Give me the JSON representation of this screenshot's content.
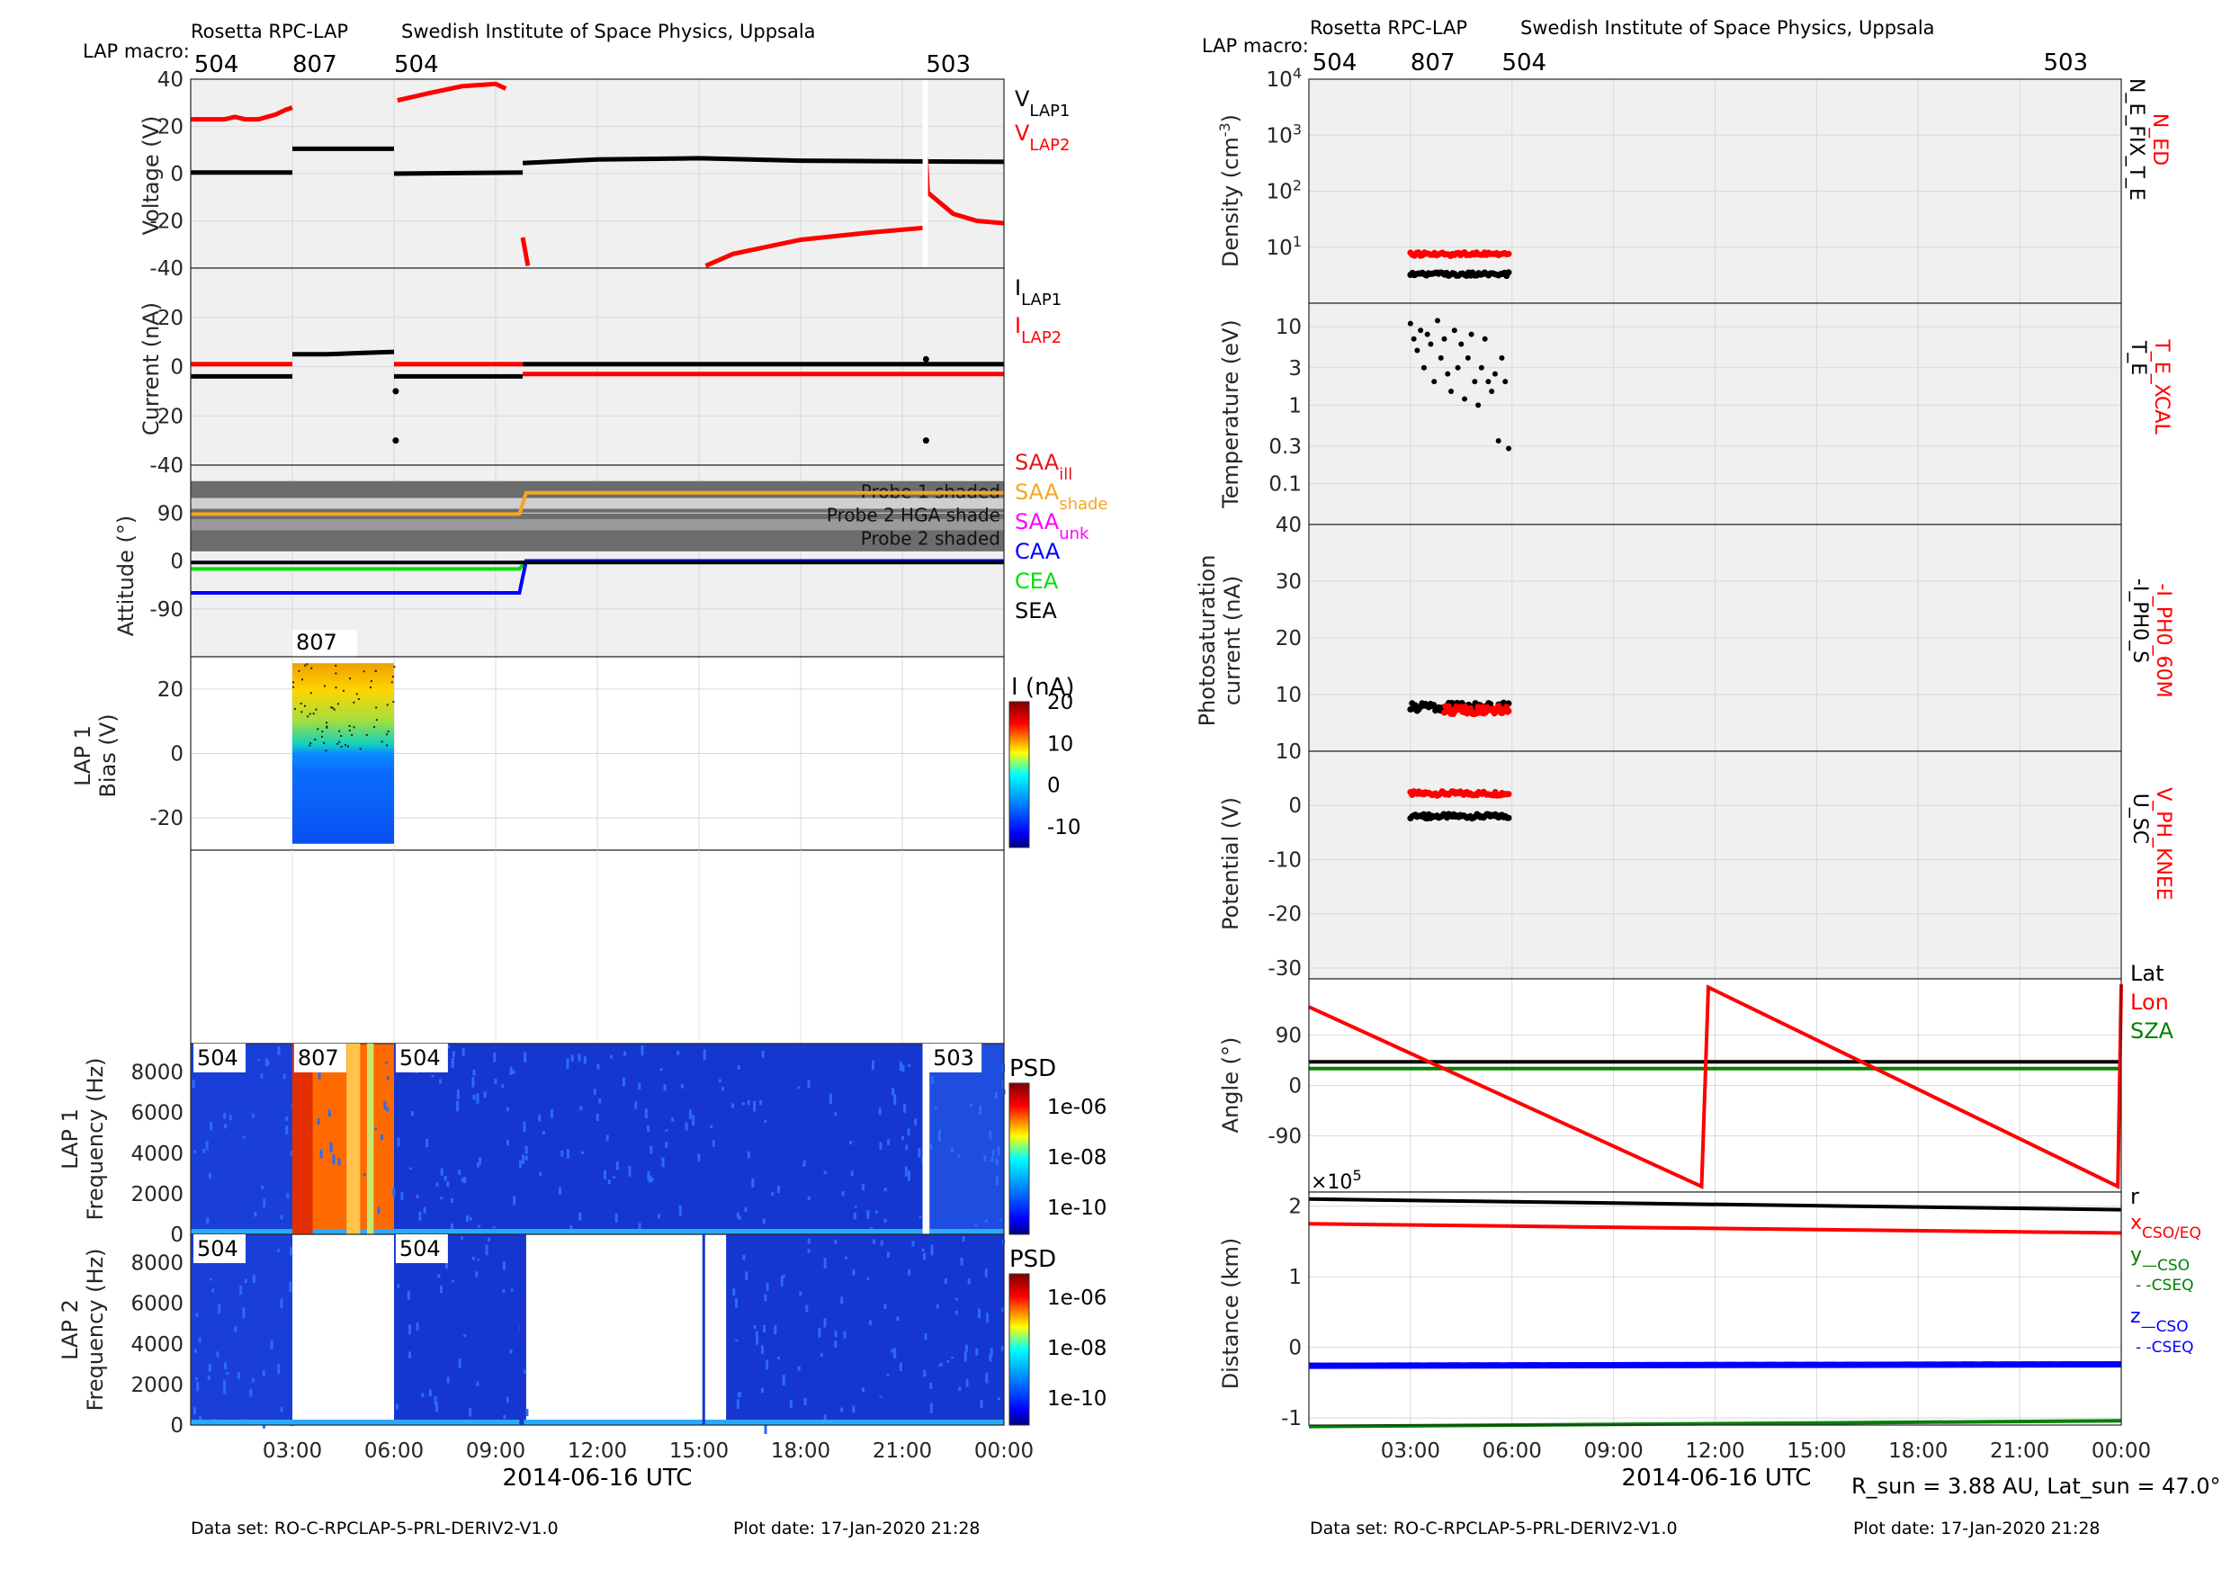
{
  "left": {
    "header": "Rosetta RPC-LAP",
    "institute": "Swedish Institute of Space Physics, Uppsala",
    "macro_label": "LAP macro:",
    "xlabel": "2014-06-16 UTC",
    "footer_dataset": "Data set: RO-C-RPCLAP-5-PRL-DERIV2-V1.0",
    "footer_plotdate": "Plot date: 17-Jan-2020 21:28"
  },
  "right": {
    "header": "Rosetta RPC-LAP",
    "institute": "Swedish Institute of Space Physics, Uppsala",
    "macro_label": "LAP macro:",
    "xlabel": "2014-06-16 UTC",
    "sun_info": "R_sun = 3.88 AU, Lat_sun = 47.0°",
    "footer_dataset": "Data set: RO-C-RPCLAP-5-PRL-DERIV2-V1.0",
    "footer_plotdate": "Plot date: 17-Jan-2020 21:28"
  },
  "chart_data": [
    {
      "type": "line",
      "panel": "voltage",
      "ylabel": "Voltage (V)",
      "ylim": [
        -40,
        40
      ],
      "yticks": [
        40,
        20,
        0,
        -20,
        -40
      ],
      "xlim": [
        0,
        24
      ],
      "xticks": [
        "03:00",
        "06:00",
        "09:00",
        "12:00",
        "15:00",
        "18:00",
        "21:00",
        "00:00"
      ],
      "macros": [
        {
          "hour": 0.1,
          "label": "504"
        },
        {
          "hour": 3.0,
          "label": "807"
        },
        {
          "hour": 6.0,
          "label": "504"
        },
        {
          "hour": 21.7,
          "label": "503"
        }
      ],
      "legend": [
        "V_LAP1",
        "V_LAP2"
      ],
      "colors": [
        "#000000",
        "#ff0000"
      ],
      "series": [
        {
          "name": "V_LAP1",
          "color": "#000000",
          "segments": [
            [
              [
                0,
                0.5
              ],
              [
                3,
                0.5
              ]
            ],
            [
              [
                3,
                10.5
              ],
              [
                6,
                10.5
              ]
            ],
            [
              [
                6,
                0
              ],
              [
                9.8,
                0.5
              ]
            ],
            [
              [
                9.8,
                4.5
              ],
              [
                12,
                6
              ],
              [
                15,
                6.5
              ],
              [
                18,
                5.5
              ],
              [
                24,
                5
              ]
            ]
          ]
        },
        {
          "name": "V_LAP2",
          "color": "#ff0000",
          "segments": [
            [
              [
                0,
                23
              ],
              [
                1,
                23
              ],
              [
                1.3,
                24
              ],
              [
                1.6,
                23
              ],
              [
                2,
                23
              ],
              [
                2.5,
                25
              ],
              [
                2.8,
                27
              ],
              [
                3,
                28
              ]
            ],
            [
              [
                6.1,
                31
              ],
              [
                7,
                34
              ],
              [
                8,
                37
              ],
              [
                9,
                38
              ],
              [
                9.3,
                36
              ]
            ],
            [
              [
                9.8,
                -27
              ],
              [
                9.9,
                -35
              ],
              [
                9.95,
                -39
              ]
            ],
            [
              [
                15.2,
                -39
              ],
              [
                16,
                -34
              ],
              [
                18,
                -28
              ],
              [
                20,
                -25
              ],
              [
                21.6,
                -23
              ]
            ],
            [
              [
                21.7,
                7
              ],
              [
                21.75,
                -8
              ],
              [
                22.5,
                -17
              ],
              [
                23.2,
                -20
              ],
              [
                24,
                -21
              ]
            ]
          ]
        }
      ]
    },
    {
      "type": "line",
      "panel": "current",
      "ylabel": "Current (nA)",
      "ylim": [
        -40,
        40
      ],
      "yticks": [
        40,
        20,
        0,
        -20,
        -40
      ],
      "legend": [
        "I_LAP1",
        "I_LAP2"
      ],
      "colors": [
        "#000000",
        "#ff0000"
      ],
      "series": [
        {
          "name": "I_LAP1",
          "color": "#000000",
          "segments": [
            [
              [
                0,
                -4
              ],
              [
                3,
                -4
              ]
            ],
            [
              [
                3,
                5
              ],
              [
                4,
                5
              ],
              [
                5,
                5.5
              ],
              [
                6,
                6
              ]
            ],
            [
              [
                6,
                -4
              ],
              [
                9.8,
                -4
              ]
            ],
            [
              [
                9.8,
                1
              ],
              [
                24,
                1
              ]
            ]
          ]
        },
        {
          "name": "I_LAP2",
          "color": "#ff0000",
          "segments": [
            [
              [
                0,
                1
              ],
              [
                3,
                1
              ]
            ],
            [
              [
                6,
                1
              ],
              [
                9.8,
                1
              ]
            ],
            [
              [
                9.8,
                -3
              ],
              [
                24,
                -3
              ]
            ]
          ]
        }
      ],
      "points": [
        {
          "x": 6.05,
          "y": -10
        },
        {
          "x": 6.05,
          "y": -30
        },
        {
          "x": 21.7,
          "y": -30
        },
        {
          "x": 21.7,
          "y": 3
        }
      ]
    },
    {
      "type": "line",
      "panel": "attitude",
      "ylabel": "Attitude (°)",
      "ylim": [
        -180,
        180
      ],
      "yticks": [
        90,
        0,
        -90
      ],
      "shading": [
        "Probe 1 shaded",
        "Probe 2 HGA shade",
        "Probe 2 shaded"
      ],
      "legend": [
        "SAA_ill",
        "SAA_shade",
        "SAA_unk",
        "CAA",
        "CEA",
        "SEA"
      ],
      "colors": [
        "#e4161b",
        "#f5a623",
        "#ff00ff",
        "#0000ff",
        "#00e000",
        "#000000"
      ],
      "series": [
        {
          "name": "SAA",
          "color": "#f5a623",
          "points": [
            [
              0,
              88
            ],
            [
              9.7,
              88
            ],
            [
              9.9,
              128
            ],
            [
              24,
              128
            ]
          ]
        },
        {
          "name": "CEA",
          "color": "#00e000",
          "points": [
            [
              0,
              -15
            ],
            [
              9.7,
              -15
            ],
            [
              9.9,
              0
            ],
            [
              24,
              0
            ]
          ]
        },
        {
          "name": "CAA",
          "color": "#0000ff",
          "points": [
            [
              0,
              -60
            ],
            [
              9.7,
              -60
            ],
            [
              9.9,
              0
            ],
            [
              24,
              0
            ]
          ]
        },
        {
          "name": "SEA",
          "color": "#000000",
          "points": [
            [
              0,
              -3
            ],
            [
              24,
              -3
            ]
          ]
        }
      ]
    },
    {
      "type": "heatmap",
      "panel": "lap1_bias",
      "ylabel": "LAP 1 Bias (V)",
      "ylim": [
        -30,
        30
      ],
      "yticks": [
        20,
        0,
        -20
      ],
      "colorbar_label": "I (nA)",
      "clim": [
        -15,
        20
      ],
      "cticks": [
        20,
        10,
        0,
        -10
      ],
      "block": {
        "x0": 3.0,
        "x1": 6.0,
        "y0": -28,
        "y1": 28,
        "macro": "807"
      }
    },
    {
      "type": "heatmap",
      "panel": "lap1_psd",
      "ylabel": "LAP 1 Frequency (Hz)",
      "ylim": [
        0,
        9400
      ],
      "yticks": [
        0,
        2000,
        4000,
        6000,
        8000
      ],
      "colorbar_label": "PSD",
      "cticks": [
        "1e-06",
        "1e-08",
        "1e-10"
      ],
      "macros": [
        "504",
        "807",
        "504",
        "503"
      ]
    },
    {
      "type": "heatmap",
      "panel": "lap2_psd",
      "ylabel": "LAP 2 Frequency (Hz)",
      "ylim": [
        0,
        9400
      ],
      "yticks": [
        0,
        2000,
        4000,
        6000,
        8000
      ],
      "colorbar_label": "PSD",
      "cticks": [
        "1e-06",
        "1e-08",
        "1e-10"
      ],
      "macros": [
        "504",
        "504"
      ],
      "gaps": [
        [
          3.0,
          6.0
        ],
        [
          9.9,
          15.8
        ]
      ]
    },
    {
      "type": "scatter",
      "panel": "density",
      "ylabel": "Density (cm^-3)",
      "yscale": "log",
      "ylim": [
        1,
        10000
      ],
      "ytick_labels": [
        "10^1",
        "10^2",
        "10^3",
        "10^4"
      ],
      "legend": [
        "N_ED",
        "N_E_FIX_T_E"
      ],
      "colors": [
        "#ff0000",
        "#000000"
      ],
      "series": [
        {
          "name": "N_ED",
          "color": "#ff0000",
          "x_range": [
            3.0,
            5.9
          ],
          "y": 7.5
        },
        {
          "name": "N_E_FIX_T_E",
          "color": "#000000",
          "x_range": [
            3.0,
            5.9
          ],
          "y": 3.3
        }
      ]
    },
    {
      "type": "scatter",
      "panel": "temperature",
      "ylabel": "Temperature (eV)",
      "yscale": "log",
      "ylim": [
        0.03,
        20
      ],
      "ytick_labels": [
        "10",
        "3",
        "1",
        "0.3",
        "0.1"
      ],
      "legend": [
        "T_E_XCAL",
        "T_E"
      ],
      "colors": [
        "#ff0000",
        "#000000"
      ],
      "series": [
        {
          "name": "T_E",
          "color": "#000000",
          "points": [
            [
              3.0,
              11
            ],
            [
              3.1,
              7
            ],
            [
              3.2,
              5
            ],
            [
              3.3,
              9
            ],
            [
              3.4,
              3
            ],
            [
              3.5,
              8
            ],
            [
              3.6,
              6
            ],
            [
              3.7,
              2
            ],
            [
              3.8,
              12
            ],
            [
              3.9,
              4
            ],
            [
              4.0,
              7
            ],
            [
              4.1,
              2.5
            ],
            [
              4.2,
              1.5
            ],
            [
              4.3,
              9
            ],
            [
              4.4,
              3
            ],
            [
              4.5,
              6
            ],
            [
              4.6,
              1.2
            ],
            [
              4.7,
              4
            ],
            [
              4.8,
              8
            ],
            [
              4.9,
              2
            ],
            [
              5.0,
              1
            ],
            [
              5.1,
              3
            ],
            [
              5.2,
              7
            ],
            [
              5.3,
              2
            ],
            [
              5.4,
              1.5
            ],
            [
              5.5,
              2.5
            ],
            [
              5.6,
              0.35
            ],
            [
              5.7,
              4
            ],
            [
              5.8,
              2
            ],
            [
              5.9,
              0.28
            ]
          ]
        }
      ]
    },
    {
      "type": "scatter",
      "panel": "photosaturation",
      "ylabel": "Photosaturation current (nA)",
      "ylim": [
        0,
        40
      ],
      "yticks": [
        40,
        30,
        20,
        10
      ],
      "legend": [
        "-I_PH0_60M",
        "-I_PH0_S"
      ],
      "colors": [
        "#ff0000",
        "#000000"
      ],
      "series": [
        {
          "name": "-I_PH0_S",
          "color": "#000000",
          "x_range": [
            3.0,
            5.9
          ],
          "y": 7.8
        },
        {
          "name": "-I_PH0_60M",
          "color": "#ff0000",
          "x_range": [
            4.0,
            5.9
          ],
          "y": 7.3
        }
      ]
    },
    {
      "type": "scatter",
      "panel": "potential",
      "ylabel": "Potential (V)",
      "ylim": [
        -32,
        10
      ],
      "yticks": [
        10,
        0,
        -10,
        -20,
        -30
      ],
      "legend": [
        "V_PH_KNEE",
        "U_SC"
      ],
      "colors": [
        "#ff0000",
        "#000000"
      ],
      "series": [
        {
          "name": "V_PH_KNEE",
          "color": "#ff0000",
          "x_range": [
            3.0,
            5.9
          ],
          "y": 2.2
        },
        {
          "name": "U_SC",
          "color": "#000000",
          "x_range": [
            3.0,
            5.9
          ],
          "y": -2
        }
      ]
    },
    {
      "type": "line",
      "panel": "angle",
      "ylabel": "Angle (°)",
      "ylim": [
        -190,
        190
      ],
      "yticks": [
        90,
        0,
        -90
      ],
      "legend": [
        "Lat",
        "Lon",
        "SZA"
      ],
      "colors": [
        "#000000",
        "#ff0000",
        "#008000"
      ],
      "series": [
        {
          "name": "Lat",
          "color": "#000000",
          "points": [
            [
              0,
              42
            ],
            [
              24,
              42
            ]
          ]
        },
        {
          "name": "SZA",
          "color": "#008000",
          "points": [
            [
              0,
              30
            ],
            [
              24,
              30
            ]
          ]
        },
        {
          "name": "Lon",
          "color": "#ff0000",
          "points": [
            [
              0,
              140
            ],
            [
              11.6,
              -180
            ],
            [
              11.8,
              175
            ],
            [
              23.9,
              -180
            ],
            [
              24,
              180
            ]
          ]
        }
      ]
    },
    {
      "type": "line",
      "panel": "distance",
      "ylabel": "Distance (km)",
      "ylim": [
        -1.1,
        2.2
      ],
      "yticks": [
        2,
        1,
        0,
        -1
      ],
      "scale_label": "×10^5",
      "legend": [
        "r",
        "x_CSO/EQ",
        "y_—CSO",
        "y_--CSEQ",
        "z_—CSO",
        "z_--CSEQ"
      ],
      "colors": [
        "#000000",
        "#ff0000",
        "#008000",
        "#008000",
        "#0000ff",
        "#0000ff"
      ],
      "series": [
        {
          "name": "r",
          "color": "#000000",
          "points": [
            [
              0,
              2.1
            ],
            [
              24,
              1.95
            ]
          ]
        },
        {
          "name": "x",
          "color": "#ff0000",
          "points": [
            [
              0,
              1.75
            ],
            [
              24,
              1.62
            ]
          ]
        },
        {
          "name": "z",
          "color": "#0000ff",
          "points": [
            [
              0,
              -0.26
            ],
            [
              24,
              -0.24
            ]
          ]
        },
        {
          "name": "y",
          "color": "#008000",
          "points": [
            [
              0,
              -1.12
            ],
            [
              24,
              -1.04
            ]
          ]
        }
      ]
    }
  ]
}
